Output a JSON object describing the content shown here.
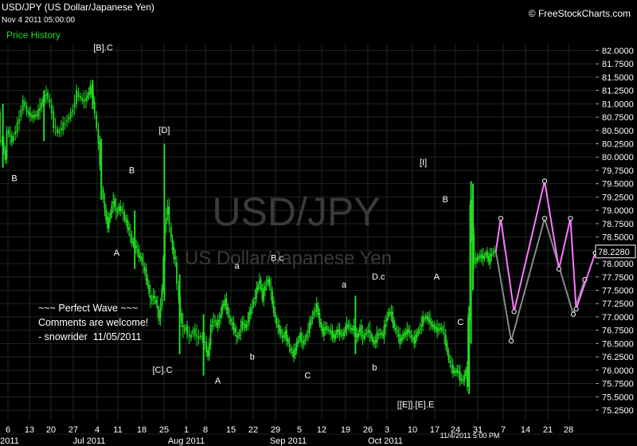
{
  "header": {
    "title": "USD/JPY (US Dollar/Japanese Yen)",
    "subtitle": "Nov 4 2011 05:00:00",
    "legend": "Price History",
    "brand": "© FreeStockCharts.com"
  },
  "watermark": {
    "symbol": "USD/JPY",
    "name": "US Dollar/Japanese Yen"
  },
  "comment": [
    "~~~ Perfect Wave ~~~",
    "Comments are welcome!",
    "- snowrider  11/05/2011"
  ],
  "colors": {
    "background": "#000000",
    "candle": "#22dd22",
    "projection": "#ff77ff",
    "alt_projection": "#888888",
    "grid": "#1a2a1a"
  },
  "chart_data": {
    "type": "line",
    "ylim": [
      75.0,
      82.35
    ],
    "y_ticks": [
      "82.0000",
      "81.7500",
      "81.5000",
      "81.2500",
      "81.0000",
      "80.7500",
      "80.5000",
      "80.2500",
      "80.0000",
      "79.7500",
      "79.5000",
      "79.2500",
      "79.0000",
      "78.7500",
      "78.5000",
      "78.2500",
      "78.0000",
      "77.7500",
      "77.5000",
      "77.2500",
      "77.0000",
      "76.7500",
      "76.5000",
      "76.2500",
      "76.0000",
      "75.7500",
      "75.5000",
      "75.2500"
    ],
    "x_ticks": [
      "6",
      "13",
      "20",
      "27",
      "4",
      "11",
      "18",
      "25",
      "1",
      "8",
      "15",
      "22",
      "29",
      "5",
      "12",
      "19",
      "26",
      "3",
      "10",
      "17",
      "24",
      "31",
      "7",
      "14",
      "21",
      "28"
    ],
    "month_labels": [
      "2011",
      "Jul 2011",
      "Aug 2011",
      "Sep 2011",
      "Oct 2011"
    ],
    "cursor_date": "11/4/2011 5:00 PM",
    "last_price": "78.2280",
    "price_path": [
      {
        "i": 0,
        "v": 80.8
      },
      {
        "i": 2,
        "v": 80.3
      },
      {
        "i": 4,
        "v": 80.3
      },
      {
        "i": 7,
        "v": 79.95
      },
      {
        "i": 9,
        "v": 80.5
      },
      {
        "i": 14,
        "v": 80.3
      },
      {
        "i": 20,
        "v": 80.6
      },
      {
        "i": 26,
        "v": 81.05
      },
      {
        "i": 30,
        "v": 80.85
      },
      {
        "i": 35,
        "v": 80.75
      },
      {
        "i": 40,
        "v": 80.8
      },
      {
        "i": 45,
        "v": 81.0
      },
      {
        "i": 50,
        "v": 81.2
      },
      {
        "i": 54,
        "v": 81.0
      },
      {
        "i": 58,
        "v": 80.6
      },
      {
        "i": 62,
        "v": 80.45
      },
      {
        "i": 66,
        "v": 80.55
      },
      {
        "i": 70,
        "v": 80.65
      },
      {
        "i": 74,
        "v": 80.75
      },
      {
        "i": 78,
        "v": 80.9
      },
      {
        "i": 82,
        "v": 81.2
      },
      {
        "i": 86,
        "v": 81.1
      },
      {
        "i": 90,
        "v": 81.05
      },
      {
        "i": 93,
        "v": 81.15
      },
      {
        "i": 96,
        "v": 81.3
      },
      {
        "i": 99,
        "v": 81.05
      },
      {
        "i": 103,
        "v": 80.55
      },
      {
        "i": 106,
        "v": 79.9
      },
      {
        "i": 108,
        "v": 79.4
      },
      {
        "i": 111,
        "v": 79.0
      },
      {
        "i": 114,
        "v": 78.7
      },
      {
        "i": 117,
        "v": 78.95
      },
      {
        "i": 120,
        "v": 79.2
      },
      {
        "i": 123,
        "v": 78.95
      },
      {
        "i": 126,
        "v": 79.05
      },
      {
        "i": 129,
        "v": 79.0
      },
      {
        "i": 132,
        "v": 78.85
      },
      {
        "i": 135,
        "v": 78.7
      },
      {
        "i": 138,
        "v": 78.5
      },
      {
        "i": 141,
        "v": 78.35
      },
      {
        "i": 144,
        "v": 78.3
      },
      {
        "i": 147,
        "v": 78.15
      },
      {
        "i": 150,
        "v": 78.05
      },
      {
        "i": 153,
        "v": 77.85
      },
      {
        "i": 156,
        "v": 77.6
      },
      {
        "i": 159,
        "v": 77.3
      },
      {
        "i": 162,
        "v": 77.4
      },
      {
        "i": 165,
        "v": 77.25
      },
      {
        "i": 168,
        "v": 76.95
      },
      {
        "i": 171,
        "v": 77.5
      },
      {
        "i": 174,
        "v": 78.7
      },
      {
        "i": 177,
        "v": 79.1
      },
      {
        "i": 179,
        "v": 78.7
      },
      {
        "i": 182,
        "v": 78.25
      },
      {
        "i": 185,
        "v": 78.05
      },
      {
        "i": 187,
        "v": 77.6
      },
      {
        "i": 190,
        "v": 77.05
      },
      {
        "i": 193,
        "v": 76.75
      },
      {
        "i": 196,
        "v": 76.8
      },
      {
        "i": 200,
        "v": 76.6
      },
      {
        "i": 204,
        "v": 76.75
      },
      {
        "i": 208,
        "v": 76.6
      },
      {
        "i": 212,
        "v": 76.65
      },
      {
        "i": 216,
        "v": 76.5
      },
      {
        "i": 219,
        "v": 76.25
      },
      {
        "i": 222,
        "v": 76.8
      },
      {
        "i": 225,
        "v": 76.95
      },
      {
        "i": 228,
        "v": 76.85
      },
      {
        "i": 231,
        "v": 76.95
      },
      {
        "i": 234,
        "v": 77.2
      },
      {
        "i": 237,
        "v": 77.3
      },
      {
        "i": 240,
        "v": 77.05
      },
      {
        "i": 243,
        "v": 76.9
      },
      {
        "i": 246,
        "v": 76.8
      },
      {
        "i": 249,
        "v": 76.6
      },
      {
        "i": 252,
        "v": 76.7
      },
      {
        "i": 255,
        "v": 76.9
      },
      {
        "i": 258,
        "v": 76.8
      },
      {
        "i": 261,
        "v": 76.95
      },
      {
        "i": 264,
        "v": 77.15
      },
      {
        "i": 267,
        "v": 77.3
      },
      {
        "i": 270,
        "v": 77.5
      },
      {
        "i": 273,
        "v": 77.7
      },
      {
        "i": 276,
        "v": 77.35
      },
      {
        "i": 279,
        "v": 77.6
      },
      {
        "i": 282,
        "v": 77.7
      },
      {
        "i": 285,
        "v": 77.45
      },
      {
        "i": 288,
        "v": 77.1
      },
      {
        "i": 291,
        "v": 76.85
      },
      {
        "i": 294,
        "v": 76.75
      },
      {
        "i": 297,
        "v": 76.6
      },
      {
        "i": 300,
        "v": 76.7
      },
      {
        "i": 303,
        "v": 76.5
      },
      {
        "i": 306,
        "v": 76.35
      },
      {
        "i": 309,
        "v": 76.3
      },
      {
        "i": 312,
        "v": 76.5
      },
      {
        "i": 315,
        "v": 76.65
      },
      {
        "i": 318,
        "v": 76.5
      },
      {
        "i": 321,
        "v": 76.6
      },
      {
        "i": 324,
        "v": 76.75
      },
      {
        "i": 327,
        "v": 76.95
      },
      {
        "i": 330,
        "v": 77.1
      },
      {
        "i": 333,
        "v": 77.2
      },
      {
        "i": 336,
        "v": 76.9
      },
      {
        "i": 339,
        "v": 76.7
      },
      {
        "i": 342,
        "v": 76.8
      },
      {
        "i": 345,
        "v": 76.75
      },
      {
        "i": 348,
        "v": 76.7
      },
      {
        "i": 351,
        "v": 76.6
      },
      {
        "i": 354,
        "v": 76.75
      },
      {
        "i": 357,
        "v": 76.7
      },
      {
        "i": 360,
        "v": 76.65
      },
      {
        "i": 363,
        "v": 76.8
      },
      {
        "i": 366,
        "v": 76.85
      },
      {
        "i": 369,
        "v": 76.75
      },
      {
        "i": 372,
        "v": 76.8
      },
      {
        "i": 375,
        "v": 76.6
      },
      {
        "i": 378,
        "v": 76.8
      },
      {
        "i": 381,
        "v": 76.6
      },
      {
        "i": 384,
        "v": 76.7
      },
      {
        "i": 387,
        "v": 76.75
      },
      {
        "i": 390,
        "v": 76.6
      },
      {
        "i": 393,
        "v": 76.5
      },
      {
        "i": 396,
        "v": 76.65
      },
      {
        "i": 399,
        "v": 76.7
      },
      {
        "i": 402,
        "v": 76.65
      },
      {
        "i": 405,
        "v": 76.9
      },
      {
        "i": 408,
        "v": 77.1
      },
      {
        "i": 411,
        "v": 77.05
      },
      {
        "i": 414,
        "v": 76.8
      },
      {
        "i": 417,
        "v": 76.7
      },
      {
        "i": 420,
        "v": 76.55
      },
      {
        "i": 423,
        "v": 76.65
      },
      {
        "i": 426,
        "v": 76.7
      },
      {
        "i": 429,
        "v": 76.75
      },
      {
        "i": 432,
        "v": 76.6
      },
      {
        "i": 435,
        "v": 76.55
      },
      {
        "i": 438,
        "v": 76.7
      },
      {
        "i": 441,
        "v": 76.8
      },
      {
        "i": 444,
        "v": 76.95
      },
      {
        "i": 447,
        "v": 77.0
      },
      {
        "i": 450,
        "v": 76.95
      },
      {
        "i": 453,
        "v": 76.85
      },
      {
        "i": 456,
        "v": 76.8
      },
      {
        "i": 459,
        "v": 76.75
      },
      {
        "i": 462,
        "v": 76.8
      },
      {
        "i": 465,
        "v": 76.75
      },
      {
        "i": 468,
        "v": 76.5
      },
      {
        "i": 471,
        "v": 76.2
      },
      {
        "i": 474,
        "v": 76.05
      },
      {
        "i": 477,
        "v": 75.95
      },
      {
        "i": 480,
        "v": 76.0
      },
      {
        "i": 483,
        "v": 75.85
      },
      {
        "i": 486,
        "v": 75.8
      },
      {
        "i": 489,
        "v": 76.0
      },
      {
        "i": 490,
        "v": 75.75
      },
      {
        "i": 492,
        "v": 77.0
      },
      {
        "i": 494,
        "v": 79.1
      },
      {
        "i": 496,
        "v": 78.5
      },
      {
        "i": 498,
        "v": 78.05
      },
      {
        "i": 501,
        "v": 78.1
      },
      {
        "i": 504,
        "v": 78.15
      },
      {
        "i": 507,
        "v": 78.1
      },
      {
        "i": 510,
        "v": 78.2
      },
      {
        "i": 513,
        "v": 78.05
      },
      {
        "i": 516,
        "v": 78.2
      },
      {
        "i": 519,
        "v": 78.23
      }
    ],
    "spikes": [
      {
        "i": 3,
        "lo": 79.8,
        "hi": 81.0
      },
      {
        "i": 46,
        "lo": 80.3,
        "hi": 81.25
      },
      {
        "i": 97,
        "lo": 80.9,
        "hi": 81.45
      },
      {
        "i": 106,
        "lo": 79.2,
        "hi": 80.35
      },
      {
        "i": 141,
        "lo": 77.9,
        "hi": 79.0
      },
      {
        "i": 172,
        "lo": 77.3,
        "hi": 80.25
      },
      {
        "i": 188,
        "lo": 76.3,
        "hi": 77.8
      },
      {
        "i": 213,
        "lo": 75.9,
        "hi": 77.05
      },
      {
        "i": 372,
        "lo": 76.3,
        "hi": 77.4
      },
      {
        "i": 491,
        "lo": 75.55,
        "hi": 77.2
      },
      {
        "i": 493,
        "lo": 76.5,
        "hi": 79.55
      },
      {
        "i": 495,
        "lo": 77.5,
        "hi": 79.5
      }
    ],
    "projection_pink": [
      {
        "i": 519,
        "v": 78.23
      },
      {
        "i": 524,
        "v": 78.85
      },
      {
        "i": 538,
        "v": 77.1
      },
      {
        "i": 570,
        "v": 79.55
      },
      {
        "i": 585,
        "v": 77.9
      },
      {
        "i": 597,
        "v": 78.85
      },
      {
        "i": 603,
        "v": 77.15
      },
      {
        "i": 623,
        "v": 78.2
      }
    ],
    "projection_gray": [
      {
        "i": 519,
        "v": 78.23
      },
      {
        "i": 535,
        "v": 76.55
      },
      {
        "i": 570,
        "v": 78.85
      },
      {
        "i": 600,
        "v": 77.05
      },
      {
        "i": 612,
        "v": 77.7
      }
    ],
    "annotations": [
      {
        "text": "B",
        "i": 15,
        "v": 79.55
      },
      {
        "text": "[B].C",
        "i": 108,
        "v": 82.0
      },
      {
        "text": "A",
        "i": 122,
        "v": 78.15
      },
      {
        "text": "B",
        "i": 138,
        "v": 79.7
      },
      {
        "text": "[D]",
        "i": 172,
        "v": 80.45
      },
      {
        "text": "[C].C",
        "i": 170,
        "v": 75.95
      },
      {
        "text": "A",
        "i": 228,
        "v": 75.75
      },
      {
        "text": "a",
        "i": 248,
        "v": 77.9
      },
      {
        "text": "b",
        "i": 264,
        "v": 76.2
      },
      {
        "text": "B.c",
        "i": 290,
        "v": 78.05
      },
      {
        "text": "C",
        "i": 322,
        "v": 75.85
      },
      {
        "text": "a",
        "i": 360,
        "v": 77.55
      },
      {
        "text": "D.c",
        "i": 396,
        "v": 77.7
      },
      {
        "text": "b",
        "i": 392,
        "v": 76.0
      },
      {
        "text": "[[E]].[E].E",
        "i": 435,
        "v": 75.3
      },
      {
        "text": "[I]",
        "i": 443,
        "v": 79.85
      },
      {
        "text": "B",
        "i": 466,
        "v": 79.15
      },
      {
        "text": "A",
        "i": 457,
        "v": 77.7
      },
      {
        "text": "C",
        "i": 482,
        "v": 76.85
      }
    ]
  }
}
